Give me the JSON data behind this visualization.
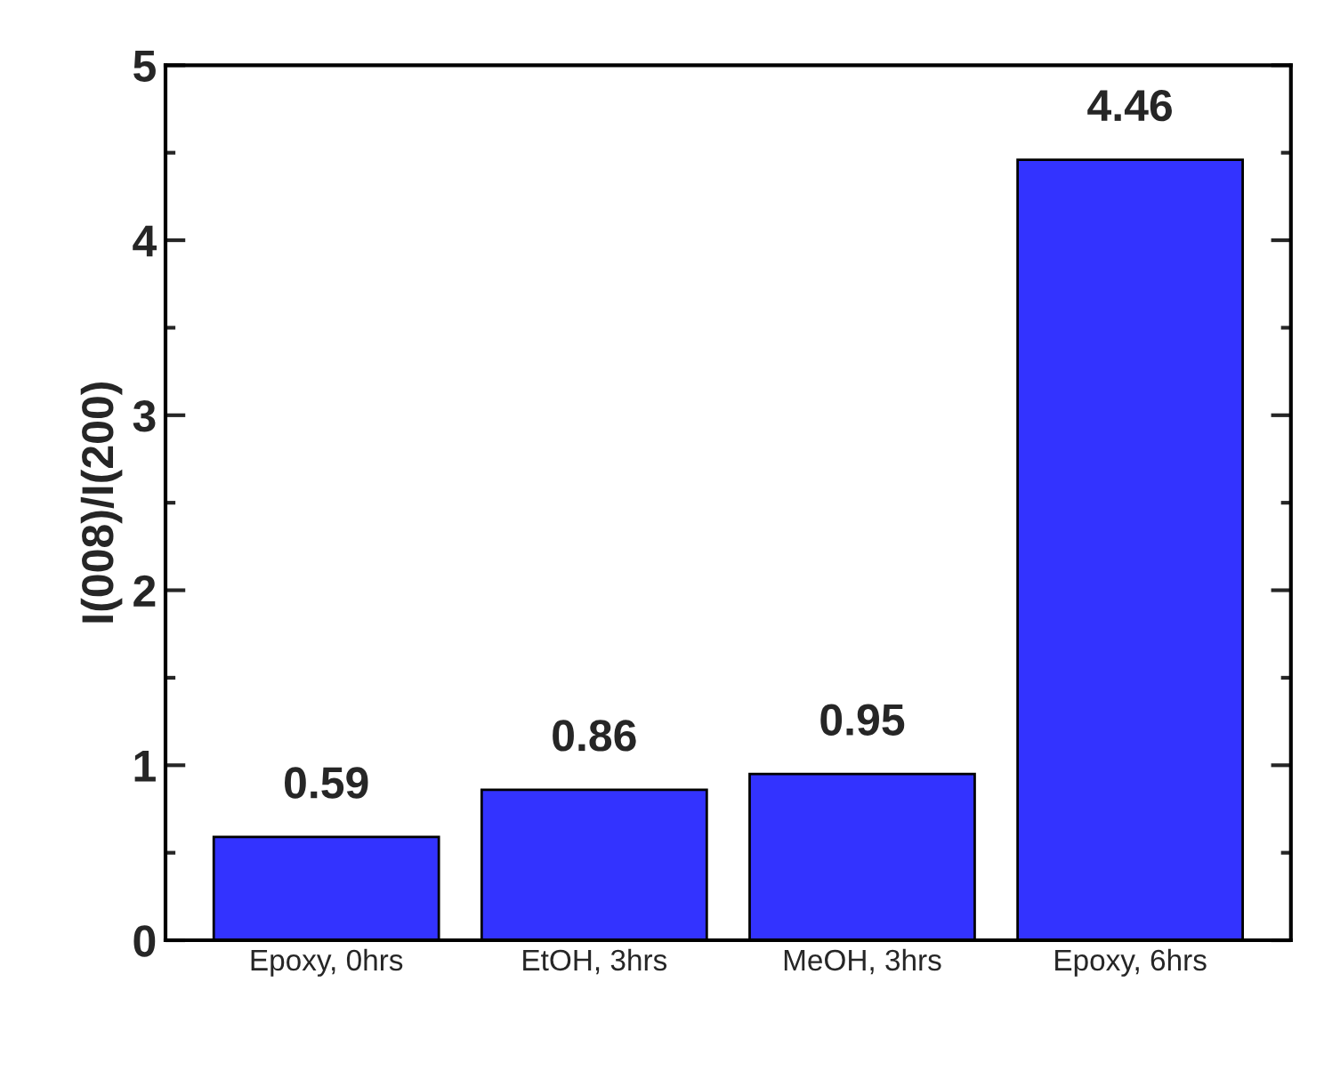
{
  "chart_data": {
    "type": "bar",
    "categories": [
      "Epoxy, 0hrs",
      "EtOH, 3hrs",
      "MeOH, 3hrs",
      "Epoxy, 6hrs"
    ],
    "values": [
      0.59,
      0.86,
      0.95,
      4.46
    ],
    "color": "#3333ff",
    "ylabel": "I(008)/I(200)",
    "ylim": [
      0,
      5
    ],
    "yticks": [
      0,
      1,
      2,
      3,
      4,
      5
    ],
    "data_labels": true,
    "grid": false
  }
}
